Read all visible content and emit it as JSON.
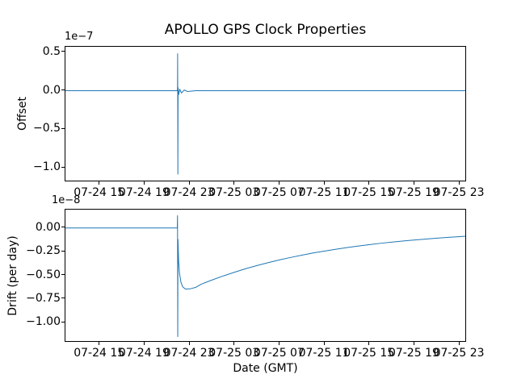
{
  "chart_data": [
    {
      "type": "line",
      "name": "offset",
      "title": "APOLLO GPS Clock Properties",
      "ylabel": "Offset",
      "scale_label": "1e−7",
      "y_scale_factor": "1e-7",
      "x_encoding": "hours since 07-24 00:00 GMT",
      "xlim": [
        11.93,
        47.64
      ],
      "ylim": [
        -1.185,
        0.57
      ],
      "grid": false,
      "legend": null,
      "line_color": "#1f77b4",
      "xticks": [
        {
          "v": 15,
          "label": "07-24 15"
        },
        {
          "v": 19,
          "label": "07-24 19"
        },
        {
          "v": 23,
          "label": "07-24 23"
        },
        {
          "v": 27,
          "label": "07-25 03"
        },
        {
          "v": 31,
          "label": "07-25 07"
        },
        {
          "v": 35,
          "label": "07-25 11"
        },
        {
          "v": 39,
          "label": "07-25 15"
        },
        {
          "v": 43,
          "label": "07-25 19"
        },
        {
          "v": 47,
          "label": "07-25 23"
        }
      ],
      "yticks": [
        {
          "v": 0.5,
          "label": "0.5"
        },
        {
          "v": 0.0,
          "label": "0.0"
        },
        {
          "v": -0.5,
          "label": "−0.5"
        },
        {
          "v": -1.0,
          "label": "−1.0"
        }
      ],
      "series": [
        {
          "name": "offset",
          "color": "#1f77b4",
          "points": [
            [
              11.93,
              0
            ],
            [
              14,
              0
            ],
            [
              16,
              0
            ],
            [
              18,
              0
            ],
            [
              20,
              0
            ],
            [
              21.88,
              0
            ],
            [
              21.9,
              0.02
            ],
            [
              21.91,
              0.48
            ],
            [
              21.93,
              -1.08
            ],
            [
              21.95,
              0.04
            ],
            [
              22.0,
              -0.05
            ],
            [
              22.1,
              0.02
            ],
            [
              22.25,
              -0.03
            ],
            [
              22.5,
              0.01
            ],
            [
              22.8,
              -0.01
            ],
            [
              23.5,
              0
            ],
            [
              26,
              0
            ],
            [
              30,
              0
            ],
            [
              34,
              0
            ],
            [
              38,
              0
            ],
            [
              42,
              0
            ],
            [
              46,
              0
            ],
            [
              47.64,
              0
            ]
          ]
        }
      ]
    },
    {
      "type": "line",
      "name": "drift",
      "xlabel": "Date (GMT)",
      "ylabel": "Drift (per day)",
      "scale_label": "1e−8",
      "y_scale_factor": "1e-8",
      "x_encoding": "hours since 07-24 00:00 GMT",
      "xlim": [
        11.93,
        47.64
      ],
      "ylim": [
        -1.211,
        0.194
      ],
      "grid": false,
      "legend": null,
      "line_color": "#1f77b4",
      "xticks": [
        {
          "v": 15,
          "label": "07-24 15"
        },
        {
          "v": 19,
          "label": "07-24 19"
        },
        {
          "v": 23,
          "label": "07-24 23"
        },
        {
          "v": 27,
          "label": "07-25 03"
        },
        {
          "v": 31,
          "label": "07-25 07"
        },
        {
          "v": 35,
          "label": "07-25 11"
        },
        {
          "v": 39,
          "label": "07-25 15"
        },
        {
          "v": 43,
          "label": "07-25 19"
        },
        {
          "v": 47,
          "label": "07-25 23"
        }
      ],
      "yticks": [
        {
          "v": 0.0,
          "label": "0.00"
        },
        {
          "v": -0.25,
          "label": "−0.25"
        },
        {
          "v": -0.5,
          "label": "−0.50"
        },
        {
          "v": -0.75,
          "label": "−0.75"
        },
        {
          "v": -1.0,
          "label": "−1.00"
        }
      ],
      "series": [
        {
          "name": "drift",
          "color": "#1f77b4",
          "points": [
            [
              11.93,
              0
            ],
            [
              14,
              0
            ],
            [
              16,
              0
            ],
            [
              18,
              0
            ],
            [
              20,
              0
            ],
            [
              21.88,
              0
            ],
            [
              21.9,
              0.13
            ],
            [
              21.92,
              -1.147
            ],
            [
              21.94,
              -0.12
            ],
            [
              22.0,
              -0.35
            ],
            [
              22.08,
              -0.48
            ],
            [
              22.2,
              -0.57
            ],
            [
              22.35,
              -0.62
            ],
            [
              22.6,
              -0.645
            ],
            [
              23.0,
              -0.643
            ],
            [
              23.5,
              -0.628
            ],
            [
              24,
              -0.594
            ],
            [
              25,
              -0.548
            ],
            [
              26,
              -0.505
            ],
            [
              27,
              -0.466
            ],
            [
              28,
              -0.429
            ],
            [
              29,
              -0.396
            ],
            [
              30,
              -0.365
            ],
            [
              31,
              -0.336
            ],
            [
              32,
              -0.31
            ],
            [
              33,
              -0.286
            ],
            [
              34,
              -0.263
            ],
            [
              35,
              -0.243
            ],
            [
              36,
              -0.224
            ],
            [
              37,
              -0.206
            ],
            [
              38,
              -0.19
            ],
            [
              39,
              -0.175
            ],
            [
              40,
              -0.161
            ],
            [
              41,
              -0.149
            ],
            [
              42,
              -0.137
            ],
            [
              43,
              -0.126
            ],
            [
              44,
              -0.117
            ],
            [
              45,
              -0.107
            ],
            [
              46,
              -0.099
            ],
            [
              47,
              -0.091
            ],
            [
              47.64,
              -0.086
            ]
          ]
        }
      ]
    }
  ]
}
